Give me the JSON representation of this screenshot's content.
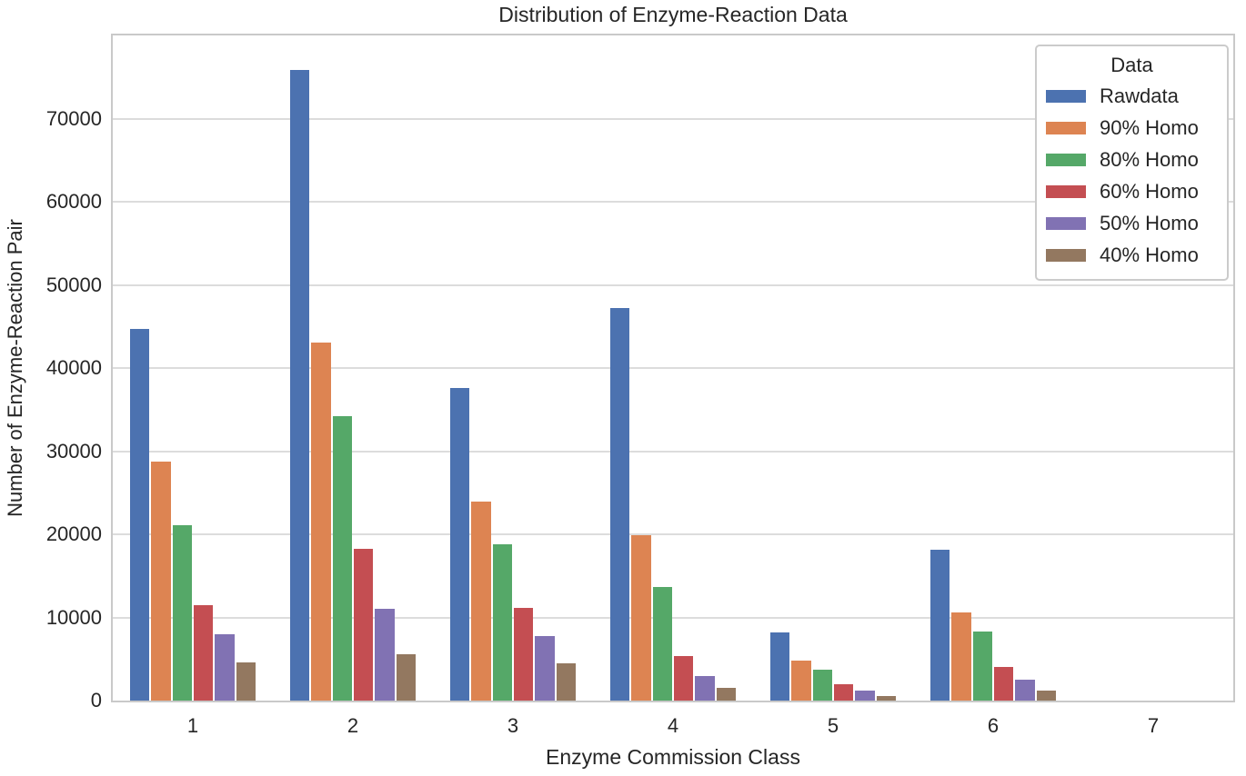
{
  "chart_data": {
    "type": "bar",
    "title": "Distribution of Enzyme-Reaction Data",
    "xlabel": "Enzyme Commission Class",
    "ylabel": "Number of Enzyme-Reaction Pair",
    "categories": [
      "1",
      "2",
      "3",
      "4",
      "5",
      "6",
      "7"
    ],
    "series": [
      {
        "name": "Rawdata",
        "color": "#4C72B0",
        "values": [
          44700,
          75800,
          37600,
          47200,
          8200,
          18100,
          0
        ]
      },
      {
        "name": "90% Homo",
        "color": "#DD8452",
        "values": [
          28700,
          43100,
          23900,
          19900,
          4800,
          10600,
          0
        ]
      },
      {
        "name": "80% Homo",
        "color": "#55A868",
        "values": [
          21100,
          34200,
          18800,
          13700,
          3700,
          8300,
          0
        ]
      },
      {
        "name": "60% Homo",
        "color": "#C44E52",
        "values": [
          11500,
          18300,
          11100,
          5400,
          2000,
          4000,
          0
        ]
      },
      {
        "name": "50% Homo",
        "color": "#8172B3",
        "values": [
          8000,
          11000,
          7800,
          3000,
          1200,
          2500,
          0
        ]
      },
      {
        "name": "40% Homo",
        "color": "#937860",
        "values": [
          4600,
          5600,
          4500,
          1500,
          600,
          1200,
          0
        ]
      }
    ],
    "ylim": [
      0,
      80000
    ],
    "yticks": [
      0,
      10000,
      20000,
      30000,
      40000,
      50000,
      60000,
      70000
    ],
    "grid": true,
    "group_width_frac": 0.8,
    "legend": {
      "title": "Data",
      "position": "upper right",
      "entries": [
        "Rawdata",
        "90% Homo",
        "80% Homo",
        "60% Homo",
        "50% Homo",
        "40% Homo"
      ]
    },
    "colors": {
      "grid": "#dcdcdc",
      "spine": "#c9c9c9",
      "text": "#262626"
    }
  }
}
